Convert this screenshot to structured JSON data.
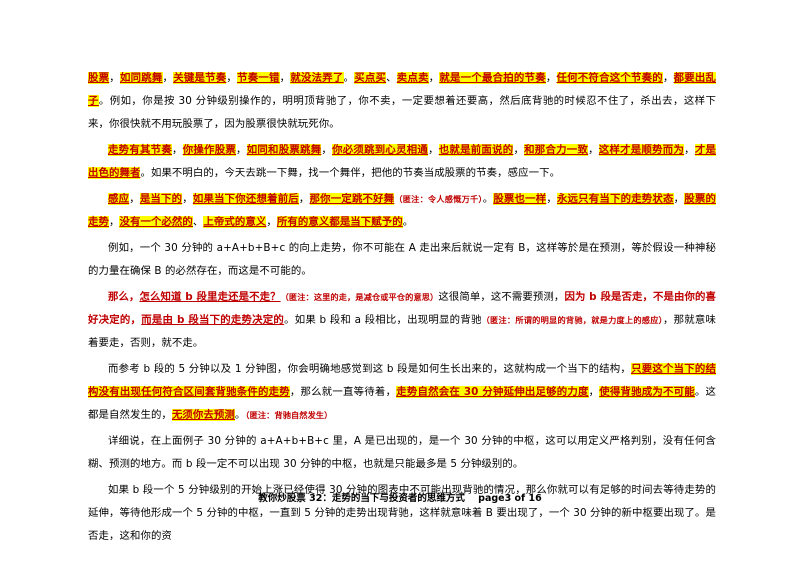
{
  "paragraphs": [
    [
      {
        "t": "股票",
        "s": "hl"
      },
      {
        "t": "，",
        "s": "n"
      },
      {
        "t": "如同跳舞",
        "s": "hl"
      },
      {
        "t": "，",
        "s": "n"
      },
      {
        "t": "关键是节奏",
        "s": "hl"
      },
      {
        "t": "，",
        "s": "n"
      },
      {
        "t": "节奏一错",
        "s": "hl"
      },
      {
        "t": "，",
        "s": "n"
      },
      {
        "t": "就没法弄了",
        "s": "hl"
      },
      {
        "t": "。",
        "s": "n"
      },
      {
        "t": "买点买",
        "s": "hl"
      },
      {
        "t": "、",
        "s": "n"
      },
      {
        "t": "卖点卖",
        "s": "hl"
      },
      {
        "t": "，",
        "s": "n"
      },
      {
        "t": "就是一个最合拍的节奏",
        "s": "hl"
      },
      {
        "t": "，",
        "s": "n"
      },
      {
        "t": "任何不符合这个节奏的",
        "s": "hl"
      },
      {
        "t": "，",
        "s": "n"
      },
      {
        "t": "都要出乱子",
        "s": "hl"
      },
      {
        "t": "。",
        "s": "n"
      },
      {
        "t": "例如，你是按 30 分钟级别操作的，明明顶背驰了，你不卖，一定要想着还要高，然后底背驰的时候忍不住了，杀出去，这样下来，你很快就不用玩股票了，因为股票很快就玩死你。",
        "s": "n"
      }
    ],
    [
      {
        "t": "走势有其节奏",
        "s": "hl"
      },
      {
        "t": "，",
        "s": "n"
      },
      {
        "t": "你操作股票",
        "s": "hl"
      },
      {
        "t": "，",
        "s": "n"
      },
      {
        "t": "如同和股票跳舞",
        "s": "hl"
      },
      {
        "t": "，",
        "s": "n"
      },
      {
        "t": "你必须跳到心灵相通",
        "s": "hl"
      },
      {
        "t": "，",
        "s": "n"
      },
      {
        "t": "也就是前面说的",
        "s": "hl"
      },
      {
        "t": "，",
        "s": "n"
      },
      {
        "t": "和那合力一致",
        "s": "hl"
      },
      {
        "t": "，",
        "s": "n"
      },
      {
        "t": "这样才是顺势而为",
        "s": "hl"
      },
      {
        "t": "，",
        "s": "n"
      },
      {
        "t": "才是出色的舞者",
        "s": "hl"
      },
      {
        "t": "。",
        "s": "n"
      },
      {
        "t": "如果不明白的，今天去跳一下舞，找一个舞伴，把他的节奏当成股票的节奏，感应一下。",
        "s": "n"
      }
    ],
    [
      {
        "t": "感应",
        "s": "hl"
      },
      {
        "t": "，",
        "s": "n"
      },
      {
        "t": "是当下的",
        "s": "hl"
      },
      {
        "t": "，",
        "s": "n"
      },
      {
        "t": "如果当下你还想着前后",
        "s": "hl"
      },
      {
        "t": "，",
        "s": "n"
      },
      {
        "t": "那你一定跳不好舞",
        "s": "hl"
      },
      {
        "t": "（匿注：令人感慨万千）",
        "s": "note"
      },
      {
        "t": "。",
        "s": "n"
      },
      {
        "t": "股票也一样",
        "s": "hl"
      },
      {
        "t": "，",
        "s": "n"
      },
      {
        "t": "永远只有当下的走势状态",
        "s": "hl"
      },
      {
        "t": "，",
        "s": "n"
      },
      {
        "t": "股票的走势",
        "s": "hl"
      },
      {
        "t": "，",
        "s": "n"
      },
      {
        "t": "没有一个必然的",
        "s": "hl"
      },
      {
        "t": "、",
        "s": "n"
      },
      {
        "t": "上帝式的意义",
        "s": "hl"
      },
      {
        "t": "，",
        "s": "n"
      },
      {
        "t": "所有的意义都是当下赋予的",
        "s": "hl"
      },
      {
        "t": "。",
        "s": "n"
      }
    ],
    [
      {
        "t": "例如，一个 30 分钟的 a+A+b+B+c 的向上走势，你不可能在 A 走出来后就说一定有 B，这样等於是在预测，等於假设一种神秘的力量在确保 B 的必然存在，而这是不可能的。",
        "s": "n"
      }
    ],
    [
      {
        "t": "那么，",
        "s": "red"
      },
      {
        "t": "怎么知道 b 段里走还是不走？",
        "s": "redu"
      },
      {
        "t": "（匿注：这里的走，是减仓或平仓的意思）",
        "s": "note"
      },
      {
        "t": "这很简单，这不需要预测，",
        "s": "n"
      },
      {
        "t": "因为 b 段是否走，不是由你的喜好决定的，",
        "s": "red"
      },
      {
        "t": "而是由 b 段当下的走势决定的",
        "s": "redu"
      },
      {
        "t": "。如果 b 段和 a 段相比，出现明显的背驰",
        "s": "n"
      },
      {
        "t": "（匿注：所谓的明显的背驰，就是力度上的感应）",
        "s": "note"
      },
      {
        "t": "，那就意味着要走，否则，就不走。",
        "s": "n"
      }
    ],
    [
      {
        "t": "而参考 b 段的 5 分钟以及 1 分钟图，你会明确地感觉到这 b 段是如何生长出来的，这就构成一个当下的结构，",
        "s": "n"
      },
      {
        "t": "只要这个当下的结构没有出现任何符合区间套背驰条件的走势",
        "s": "hl"
      },
      {
        "t": "，那么就一直等待着，",
        "s": "n"
      },
      {
        "t": "走势自然会在 30 分钟延伸出足够的力度",
        "s": "hl"
      },
      {
        "t": "，",
        "s": "n"
      },
      {
        "t": "使得背驰成为不可能",
        "s": "hl"
      },
      {
        "t": "。这都是自然发生的，",
        "s": "n"
      },
      {
        "t": "无须你去预测",
        "s": "hl"
      },
      {
        "t": "。",
        "s": "n"
      },
      {
        "t": "（匿注：背驰自然发生）",
        "s": "note"
      }
    ],
    [
      {
        "t": "详细说，在上面例子 30 分钟的 a+A+b+B+c 里，A 是已出现的，是一个 30 分钟的中枢，这可以用定义严格判别，没有任何含糊、预测的地方。而 b 段一定不可以出现 30 分钟的中枢，也就是只能最多是 5 分钟级别的。",
        "s": "n"
      }
    ],
    [
      {
        "t": "如果 b 段一个 5 分钟级别的开始上涨已经使得 30 分钟的图表中不可能出现背驰的情况，那么你就可以有足够的时间去等待走势的延伸，等待他形成一个 5 分钟的中枢，一直到 5 分钟的走势出现背驰，这样就意味着 B 要出现了，一个 30 分钟的新中枢要出现了。是否走，这和你的资",
        "s": "n"
      }
    ]
  ],
  "footer": {
    "title": "教你炒股票 32：走势的当下与投资者的思维方式",
    "page": "page3 of 16"
  }
}
